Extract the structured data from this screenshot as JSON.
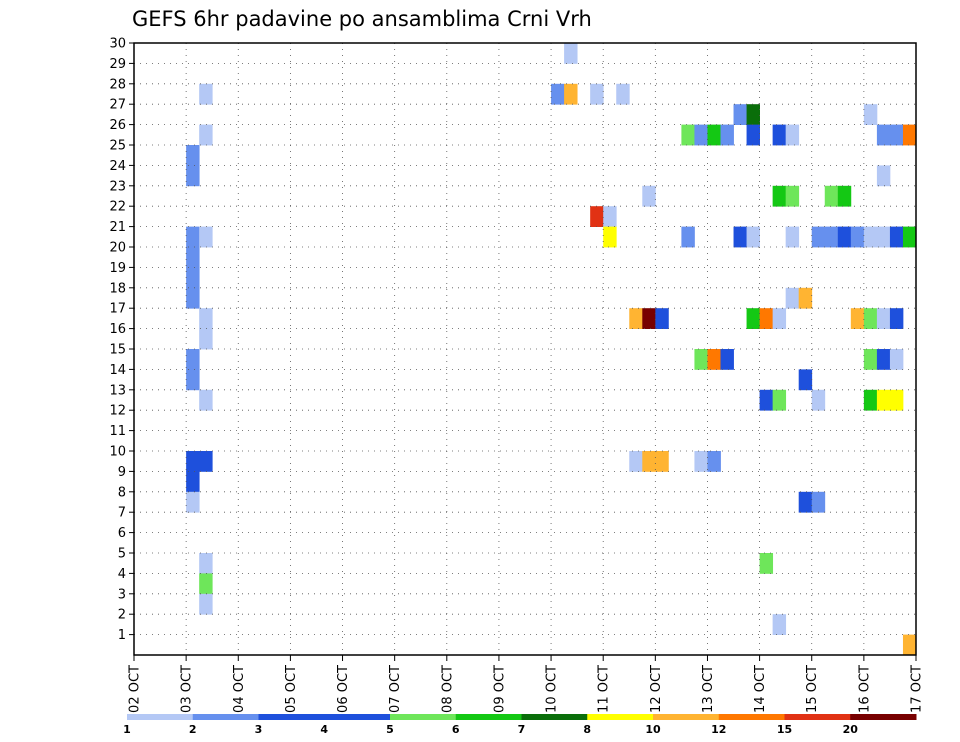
{
  "chart_data": {
    "type": "heatmap",
    "title": "GEFS 6hr padavine po ansamblima Crni Vrh",
    "xlabel": "",
    "ylabel": "",
    "x_ticks": [
      "02 OCT",
      "03 OCT",
      "04 OCT",
      "05 OCT",
      "06 OCT",
      "07 OCT",
      "08 OCT",
      "09 OCT",
      "10 OCT",
      "11 OCT",
      "12 OCT",
      "13 OCT",
      "14 OCT",
      "15 OCT",
      "16 OCT",
      "17 OCT"
    ],
    "x_range_days": [
      0,
      15
    ],
    "y_ticks": [
      1,
      2,
      3,
      4,
      5,
      6,
      7,
      8,
      9,
      10,
      11,
      12,
      13,
      14,
      15,
      16,
      17,
      18,
      19,
      20,
      21,
      22,
      23,
      24,
      25,
      26,
      27,
      28,
      29,
      30
    ],
    "y_range": [
      0,
      30
    ],
    "grid": true,
    "legend": {
      "placement": "bottom",
      "levels": [
        "1",
        "2",
        "3",
        "4",
        "5",
        "6",
        "7",
        "8",
        "10",
        "12",
        "15",
        "20"
      ],
      "colors": [
        "#b4c8f5",
        "#6690ee",
        "#1e50dc",
        "#1e50dc",
        "#6ee65a",
        "#14c814",
        "#0a6e0a",
        "#ffff00",
        "#ffb432",
        "#ff7800",
        "#e13214",
        "#780000"
      ]
    },
    "class_colors": [
      "#b4c8f5",
      "#6690ee",
      "#1e50dc",
      "#6ee65a",
      "#14c814",
      "#0a6e0a",
      "#ffff00",
      "#ffb432",
      "#ff7800",
      "#e13214",
      "#780000"
    ],
    "cells": [
      [
        1.0,
        24,
        1
      ],
      [
        1.0,
        23,
        1
      ],
      [
        1.0,
        20,
        1
      ],
      [
        1.0,
        19,
        1
      ],
      [
        1.0,
        18,
        1
      ],
      [
        1.0,
        17,
        1
      ],
      [
        1.0,
        14,
        1
      ],
      [
        1.0,
        13,
        1
      ],
      [
        1.0,
        9,
        2
      ],
      [
        1.0,
        8,
        2
      ],
      [
        1.0,
        7,
        0
      ],
      [
        1.25,
        27,
        0
      ],
      [
        1.25,
        25,
        0
      ],
      [
        1.25,
        20,
        0
      ],
      [
        1.25,
        16,
        0
      ],
      [
        1.25,
        15,
        0
      ],
      [
        1.25,
        12,
        0
      ],
      [
        1.25,
        9,
        2
      ],
      [
        1.25,
        4,
        0
      ],
      [
        1.25,
        3,
        3
      ],
      [
        1.25,
        2,
        0
      ],
      [
        8.0,
        27,
        1
      ],
      [
        8.25,
        29,
        0
      ],
      [
        8.25,
        27,
        7
      ],
      [
        8.75,
        27,
        0
      ],
      [
        8.75,
        21,
        9
      ],
      [
        9.0,
        21,
        0
      ],
      [
        9.0,
        20,
        6
      ],
      [
        9.25,
        27,
        0
      ],
      [
        9.5,
        16,
        7
      ],
      [
        9.5,
        9,
        0
      ],
      [
        9.75,
        22,
        0
      ],
      [
        9.75,
        16,
        10
      ],
      [
        9.75,
        9,
        7
      ],
      [
        10.0,
        16,
        2
      ],
      [
        10.0,
        9,
        7
      ],
      [
        10.5,
        25,
        3
      ],
      [
        10.5,
        20,
        1
      ],
      [
        10.75,
        25,
        1
      ],
      [
        10.75,
        14,
        3
      ],
      [
        10.75,
        9,
        0
      ],
      [
        11.0,
        25,
        4
      ],
      [
        11.0,
        14,
        8
      ],
      [
        11.0,
        9,
        1
      ],
      [
        11.25,
        25,
        1
      ],
      [
        11.25,
        14,
        2
      ],
      [
        11.5,
        26,
        1
      ],
      [
        11.5,
        20,
        2
      ],
      [
        11.75,
        26,
        5
      ],
      [
        11.75,
        25,
        2
      ],
      [
        11.75,
        16,
        4
      ],
      [
        11.75,
        20,
        0
      ],
      [
        12.0,
        16,
        8
      ],
      [
        12.25,
        16,
        0
      ],
      [
        12.25,
        1,
        0
      ],
      [
        12.0,
        12,
        2
      ],
      [
        12.25,
        12,
        3
      ],
      [
        12.0,
        4,
        3
      ],
      [
        12.25,
        22,
        4
      ],
      [
        12.25,
        25,
        2
      ],
      [
        12.5,
        25,
        0
      ],
      [
        12.5,
        22,
        3
      ],
      [
        12.5,
        20,
        0
      ],
      [
        12.5,
        17,
        0
      ],
      [
        12.75,
        17,
        7
      ],
      [
        12.75,
        13,
        2
      ],
      [
        12.75,
        7,
        2
      ],
      [
        13.0,
        20,
        1
      ],
      [
        13.0,
        12,
        0
      ],
      [
        13.0,
        7,
        1
      ],
      [
        13.25,
        20,
        1
      ],
      [
        13.25,
        22,
        3
      ],
      [
        13.5,
        20,
        2
      ],
      [
        13.5,
        22,
        4
      ],
      [
        13.75,
        20,
        1
      ],
      [
        13.75,
        16,
        7
      ],
      [
        14.0,
        26,
        0
      ],
      [
        14.0,
        20,
        0
      ],
      [
        14.0,
        16,
        3
      ],
      [
        14.0,
        14,
        3
      ],
      [
        14.0,
        12,
        4
      ],
      [
        14.25,
        25,
        1
      ],
      [
        14.25,
        23,
        0
      ],
      [
        14.25,
        20,
        0
      ],
      [
        14.25,
        16,
        0
      ],
      [
        14.25,
        14,
        2
      ],
      [
        14.25,
        12,
        6
      ],
      [
        14.5,
        25,
        1
      ],
      [
        14.5,
        20,
        2
      ],
      [
        14.5,
        16,
        2
      ],
      [
        14.5,
        14,
        0
      ],
      [
        14.5,
        12,
        6
      ],
      [
        14.75,
        25,
        8
      ],
      [
        14.75,
        20,
        4
      ],
      [
        14.75,
        0,
        7
      ]
    ]
  }
}
